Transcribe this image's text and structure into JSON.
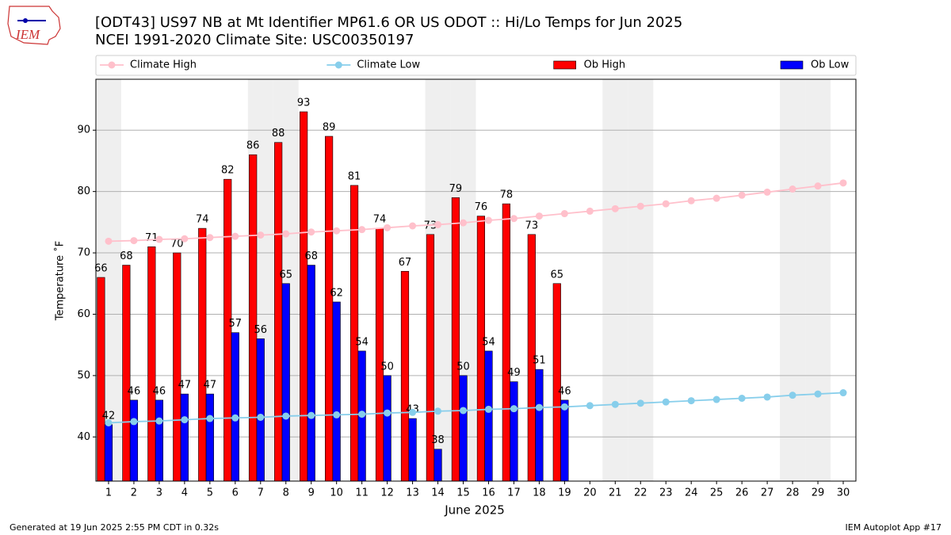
{
  "chart_data": {
    "type": "bar",
    "title": "[ODT43] US97 NB at Mt Identifier MP61.6  OR US ODOT :: Hi/Lo Temps for Jun 2025",
    "subtitle": "NCEI 1991-2020 Climate Site: USC00350197",
    "logo_text": "IEM",
    "xlabel": "June 2025",
    "ylabel": "Temperature ˚F",
    "footer_left": "Generated at 19 Jun 2025 2:55 PM CDT in 0.32s",
    "footer_right": "IEM Autoplot App #17",
    "x": [
      1,
      2,
      3,
      4,
      5,
      6,
      7,
      8,
      9,
      10,
      11,
      12,
      13,
      14,
      15,
      16,
      17,
      18,
      19,
      20,
      21,
      22,
      23,
      24,
      25,
      26,
      27,
      28,
      29,
      30
    ],
    "xlim": [
      0.5,
      30.5
    ],
    "xticks": [
      1,
      2,
      3,
      4,
      5,
      6,
      7,
      8,
      9,
      10,
      11,
      12,
      13,
      14,
      15,
      16,
      17,
      18,
      19,
      20,
      21,
      22,
      23,
      24,
      25,
      26,
      27,
      28,
      29,
      30
    ],
    "ylim": [
      32.8,
      98.3
    ],
    "yticks": [
      40,
      50,
      60,
      70,
      80,
      90
    ],
    "grid": true,
    "legend": "top",
    "shaded_days": [
      1,
      7,
      8,
      14,
      15,
      21,
      22,
      28,
      29
    ],
    "series": [
      {
        "name": "Climate High",
        "kind": "line",
        "color": "#ffc0cb",
        "values": [
          71.9,
          72.0,
          72.2,
          72.3,
          72.5,
          72.7,
          72.9,
          73.1,
          73.4,
          73.6,
          73.8,
          74.1,
          74.4,
          74.6,
          74.9,
          75.3,
          75.6,
          76.0,
          76.4,
          76.8,
          77.2,
          77.6,
          78.0,
          78.5,
          78.9,
          79.4,
          79.9,
          80.4,
          80.9,
          81.4
        ]
      },
      {
        "name": "Climate Low",
        "kind": "line",
        "color": "#87ceeb",
        "values": [
          42.3,
          42.5,
          42.6,
          42.8,
          43.0,
          43.1,
          43.2,
          43.4,
          43.5,
          43.6,
          43.7,
          43.9,
          44.0,
          44.2,
          44.3,
          44.5,
          44.6,
          44.8,
          44.9,
          45.1,
          45.3,
          45.5,
          45.7,
          45.9,
          46.1,
          46.3,
          46.5,
          46.8,
          47.0,
          47.2
        ]
      },
      {
        "name": "Ob High",
        "kind": "bar",
        "color": "#ff0000",
        "values": [
          66,
          68,
          71,
          70,
          74,
          82,
          86,
          88,
          93,
          89,
          81,
          74,
          67,
          73,
          79,
          76,
          78,
          73,
          65,
          null,
          null,
          null,
          null,
          null,
          null,
          null,
          null,
          null,
          null,
          null
        ]
      },
      {
        "name": "Ob Low",
        "kind": "bar",
        "color": "#0000ff",
        "values": [
          42,
          46,
          46,
          47,
          47,
          57,
          56,
          65,
          68,
          62,
          54,
          50,
          43,
          38,
          50,
          54,
          49,
          51,
          46,
          null,
          null,
          null,
          null,
          null,
          null,
          null,
          null,
          null,
          null,
          null
        ]
      }
    ]
  }
}
